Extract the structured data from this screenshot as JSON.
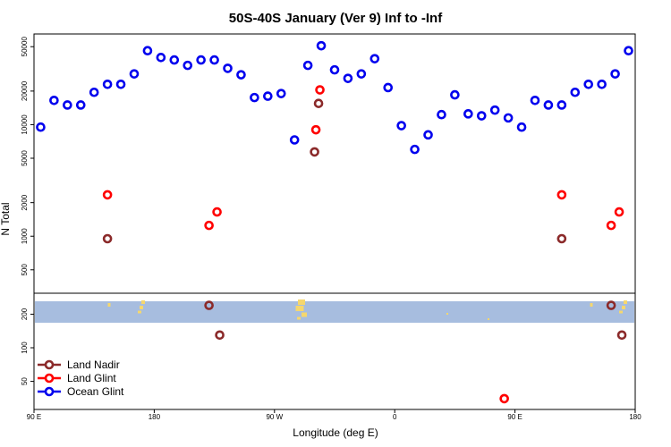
{
  "chart_data": {
    "type": "scatter",
    "title": "50S-40S January (Ver 9)   Inf to -Inf",
    "xlabel": "Longitude (deg E)",
    "ylabel": "N Total",
    "y_scale": "log",
    "ylim": [
      28,
      65000
    ],
    "x_ticks": [
      "90 E",
      "180",
      "90 W",
      "0",
      "90 E",
      "180"
    ],
    "y_ticks": [
      "50",
      "100",
      "200",
      "500",
      "1000",
      "2000",
      "5000",
      "10000",
      "20000",
      "50000"
    ],
    "legend_position": "bottom-left",
    "colors": {
      "land_nadir": "#8b2a2a",
      "land_glint": "#ff0000",
      "ocean_glint": "#0000ee",
      "map_ocean": "#a7bddf",
      "map_land": "#f5d76e"
    },
    "series": [
      {
        "name": "Land Nadir",
        "color": "#8b2a2a",
        "points": [
          [
            55,
            950
          ],
          [
            131,
            240
          ],
          [
            139,
            130
          ],
          [
            210,
            5700
          ],
          [
            213,
            15500
          ],
          [
            395,
            950
          ],
          [
            432,
            240
          ],
          [
            440,
            130
          ]
        ]
      },
      {
        "name": "Land Glint",
        "color": "#ff0000",
        "points": [
          [
            55,
            2350
          ],
          [
            131,
            1250
          ],
          [
            137,
            1650
          ],
          [
            211,
            9000
          ],
          [
            214,
            20500
          ],
          [
            352,
            35
          ],
          [
            395,
            2350
          ],
          [
            432,
            1250
          ],
          [
            438,
            1650
          ]
        ]
      },
      {
        "name": "Ocean Glint",
        "color": "#0000ee",
        "points": [
          [
            5,
            9500
          ],
          [
            15,
            16500
          ],
          [
            25,
            15000
          ],
          [
            35,
            15000
          ],
          [
            45,
            19500
          ],
          [
            55,
            23000
          ],
          [
            65,
            23000
          ],
          [
            75,
            28500
          ],
          [
            85,
            46000
          ],
          [
            95,
            40000
          ],
          [
            105,
            38000
          ],
          [
            115,
            34000
          ],
          [
            125,
            38000
          ],
          [
            135,
            38000
          ],
          [
            145,
            32000
          ],
          [
            155,
            28000
          ],
          [
            165,
            17500
          ],
          [
            175,
            18000
          ],
          [
            185,
            19000
          ],
          [
            195,
            7300
          ],
          [
            205,
            34000
          ],
          [
            215,
            51000
          ],
          [
            225,
            31000
          ],
          [
            235,
            26000
          ],
          [
            245,
            28500
          ],
          [
            255,
            39000
          ],
          [
            265,
            21500
          ],
          [
            275,
            9800
          ],
          [
            285,
            6000
          ],
          [
            295,
            8100
          ],
          [
            305,
            12300
          ],
          [
            315,
            18500
          ],
          [
            325,
            12500
          ],
          [
            335,
            12000
          ],
          [
            345,
            13500
          ],
          [
            355,
            11500
          ],
          [
            365,
            9500
          ],
          [
            375,
            16500
          ],
          [
            385,
            15000
          ],
          [
            395,
            15000
          ],
          [
            405,
            19500
          ],
          [
            415,
            23000
          ],
          [
            425,
            23000
          ],
          [
            435,
            28500
          ],
          [
            445,
            46000
          ]
        ]
      }
    ]
  }
}
